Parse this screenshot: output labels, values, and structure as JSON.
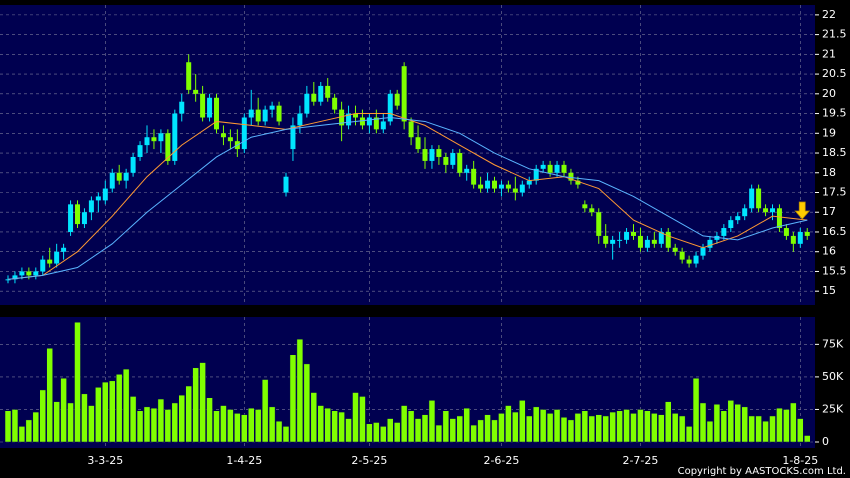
{
  "chart_data": [
    {
      "type": "candlestick",
      "up_color": "#00e5ff",
      "down_color": "#80ff00",
      "ylim": [
        14.65,
        22.25
      ],
      "yticks": [
        15,
        15.5,
        16,
        16.5,
        17,
        17.5,
        18,
        18.5,
        19,
        19.5,
        20,
        20.5,
        21,
        21.5,
        22
      ],
      "grid": true,
      "candles": [
        [
          15.3,
          15.4,
          15.2,
          15.3
        ],
        [
          15.3,
          15.5,
          15.2,
          15.4
        ],
        [
          15.4,
          15.6,
          15.3,
          15.5
        ],
        [
          15.5,
          15.6,
          15.3,
          15.4
        ],
        [
          15.4,
          15.6,
          15.3,
          15.5
        ],
        [
          15.5,
          15.9,
          15.4,
          15.8
        ],
        [
          15.8,
          16.1,
          15.6,
          15.7
        ],
        [
          15.7,
          16.2,
          15.6,
          16.0
        ],
        [
          16.0,
          16.2,
          15.8,
          16.1
        ],
        [
          16.5,
          17.3,
          16.4,
          17.2
        ],
        [
          17.2,
          17.3,
          16.6,
          16.7
        ],
        [
          16.7,
          17.1,
          16.6,
          17.0
        ],
        [
          17.0,
          17.4,
          16.8,
          17.3
        ],
        [
          17.3,
          17.5,
          17.0,
          17.4
        ],
        [
          17.3,
          17.8,
          17.2,
          17.6
        ],
        [
          17.6,
          18.1,
          17.5,
          18.0
        ],
        [
          18.0,
          18.2,
          17.7,
          17.8
        ],
        [
          17.8,
          18.1,
          17.6,
          18.0
        ],
        [
          18.0,
          18.5,
          17.9,
          18.4
        ],
        [
          18.4,
          18.8,
          18.3,
          18.7
        ],
        [
          18.7,
          19.2,
          18.5,
          18.9
        ],
        [
          18.9,
          19.1,
          18.6,
          18.8
        ],
        [
          18.8,
          19.1,
          18.5,
          19.0
        ],
        [
          19.0,
          19.1,
          18.2,
          18.3
        ],
        [
          18.3,
          19.6,
          18.2,
          19.5
        ],
        [
          19.5,
          20.0,
          19.3,
          19.8
        ],
        [
          20.8,
          21.0,
          20.0,
          20.1
        ],
        [
          20.1,
          20.5,
          19.8,
          20.0
        ],
        [
          20.0,
          20.2,
          19.3,
          19.4
        ],
        [
          19.4,
          20.0,
          19.3,
          19.9
        ],
        [
          19.9,
          20.0,
          19.0,
          19.1
        ],
        [
          19.0,
          19.2,
          18.7,
          18.9
        ],
        [
          18.9,
          19.1,
          18.6,
          18.8
        ],
        [
          18.8,
          19.1,
          18.4,
          18.6
        ],
        [
          18.6,
          19.5,
          18.5,
          19.4
        ],
        [
          19.4,
          20.1,
          19.2,
          19.6
        ],
        [
          19.6,
          19.9,
          19.2,
          19.3
        ],
        [
          19.3,
          19.7,
          19.2,
          19.6
        ],
        [
          19.6,
          19.8,
          19.4,
          19.7
        ],
        [
          19.7,
          19.8,
          19.2,
          19.3
        ],
        [
          17.5,
          18.0,
          17.4,
          17.9
        ],
        [
          18.6,
          19.4,
          18.3,
          19.2
        ],
        [
          19.2,
          19.7,
          19.0,
          19.5
        ],
        [
          19.5,
          20.2,
          19.4,
          20.0
        ],
        [
          20.0,
          20.3,
          19.7,
          19.8
        ],
        [
          19.8,
          20.3,
          19.7,
          20.2
        ],
        [
          20.2,
          20.4,
          19.8,
          19.9
        ],
        [
          19.9,
          20.0,
          19.5,
          19.6
        ],
        [
          19.6,
          19.8,
          18.8,
          19.2
        ],
        [
          19.2,
          19.7,
          19.1,
          19.5
        ],
        [
          19.5,
          19.7,
          19.2,
          19.4
        ],
        [
          19.4,
          19.6,
          19.1,
          19.2
        ],
        [
          19.2,
          19.5,
          19.0,
          19.4
        ],
        [
          19.4,
          19.6,
          19.0,
          19.1
        ],
        [
          19.1,
          19.5,
          19.0,
          19.3
        ],
        [
          19.3,
          20.1,
          19.2,
          20.0
        ],
        [
          20.0,
          20.1,
          19.6,
          19.7
        ],
        [
          20.7,
          20.8,
          19.1,
          19.3
        ],
        [
          19.3,
          19.4,
          18.7,
          18.9
        ],
        [
          18.9,
          19.2,
          18.5,
          18.6
        ],
        [
          18.6,
          18.9,
          18.1,
          18.3
        ],
        [
          18.3,
          18.7,
          18.1,
          18.6
        ],
        [
          18.6,
          18.7,
          18.2,
          18.4
        ],
        [
          18.4,
          18.5,
          18.0,
          18.2
        ],
        [
          18.2,
          18.6,
          18.1,
          18.5
        ],
        [
          18.5,
          18.6,
          17.9,
          18.0
        ],
        [
          18.0,
          18.2,
          17.8,
          18.1
        ],
        [
          18.1,
          18.3,
          17.6,
          17.7
        ],
        [
          17.7,
          17.9,
          17.5,
          17.6
        ],
        [
          17.6,
          18.0,
          17.5,
          17.8
        ],
        [
          17.8,
          17.9,
          17.5,
          17.6
        ],
        [
          17.6,
          17.8,
          17.4,
          17.7
        ],
        [
          17.7,
          17.8,
          17.5,
          17.6
        ],
        [
          17.6,
          17.9,
          17.3,
          17.5
        ],
        [
          17.5,
          17.8,
          17.4,
          17.7
        ],
        [
          17.7,
          17.9,
          17.6,
          17.8
        ],
        [
          17.8,
          18.2,
          17.7,
          18.1
        ],
        [
          18.1,
          18.3,
          18.0,
          18.2
        ],
        [
          18.2,
          18.3,
          17.9,
          18.0
        ],
        [
          18.0,
          18.3,
          17.9,
          18.2
        ],
        [
          18.2,
          18.3,
          17.9,
          18.0
        ],
        [
          18.0,
          18.1,
          17.7,
          17.8
        ],
        [
          17.8,
          17.9,
          17.6,
          17.7
        ],
        [
          17.2,
          17.3,
          17.0,
          17.1
        ],
        [
          17.1,
          17.2,
          16.9,
          17.0
        ],
        [
          17.0,
          17.1,
          16.2,
          16.4
        ],
        [
          16.4,
          16.7,
          16.1,
          16.2
        ],
        [
          16.2,
          16.4,
          15.8,
          16.3
        ],
        [
          16.3,
          16.5,
          16.1,
          16.3
        ],
        [
          16.3,
          16.6,
          16.2,
          16.5
        ],
        [
          16.5,
          16.7,
          16.3,
          16.4
        ],
        [
          16.4,
          16.6,
          16.0,
          16.1
        ],
        [
          16.1,
          16.4,
          16.0,
          16.3
        ],
        [
          16.3,
          16.5,
          16.1,
          16.2
        ],
        [
          16.2,
          16.6,
          16.1,
          16.5
        ],
        [
          16.5,
          16.6,
          16.0,
          16.1
        ],
        [
          16.1,
          16.2,
          15.9,
          16.0
        ],
        [
          16.0,
          16.1,
          15.7,
          15.8
        ],
        [
          15.8,
          15.9,
          15.6,
          15.7
        ],
        [
          15.7,
          16.0,
          15.6,
          15.9
        ],
        [
          15.9,
          16.2,
          15.8,
          16.1
        ],
        [
          16.1,
          16.4,
          16.0,
          16.3
        ],
        [
          16.3,
          16.5,
          16.2,
          16.4
        ],
        [
          16.4,
          16.7,
          16.3,
          16.6
        ],
        [
          16.6,
          16.9,
          16.5,
          16.8
        ],
        [
          16.8,
          17.0,
          16.7,
          16.9
        ],
        [
          16.9,
          17.2,
          16.8,
          17.1
        ],
        [
          17.1,
          17.7,
          17.0,
          17.6
        ],
        [
          17.6,
          17.7,
          17.0,
          17.1
        ],
        [
          17.1,
          17.2,
          16.9,
          17.0
        ],
        [
          17.0,
          17.2,
          16.8,
          17.1
        ],
        [
          17.1,
          17.2,
          16.5,
          16.6
        ],
        [
          16.6,
          16.7,
          16.3,
          16.4
        ],
        [
          16.4,
          16.5,
          16.0,
          16.2
        ],
        [
          16.2,
          16.6,
          16.1,
          16.5
        ],
        [
          16.5,
          16.6,
          16.3,
          16.4
        ]
      ],
      "lines": [
        {
          "color": "#ff9933",
          "x": [
            0,
            5,
            10,
            15,
            20,
            25,
            30,
            35,
            40,
            45,
            50,
            55,
            60,
            65,
            70,
            75,
            80,
            85,
            90,
            95,
            100,
            105,
            110,
            115
          ],
          "values": [
            15.3,
            15.4,
            16.0,
            16.9,
            17.9,
            18.7,
            19.3,
            19.2,
            19.1,
            19.3,
            19.5,
            19.5,
            19.2,
            18.7,
            18.2,
            17.8,
            17.9,
            17.6,
            16.8,
            16.4,
            16.1,
            16.4,
            16.9,
            16.8
          ]
        },
        {
          "color": "#5ab4ff",
          "x": [
            0,
            5,
            10,
            15,
            20,
            25,
            30,
            35,
            40,
            45,
            50,
            55,
            60,
            65,
            70,
            75,
            80,
            85,
            90,
            95,
            100,
            105,
            110,
            115
          ],
          "values": [
            15.3,
            15.4,
            15.6,
            16.2,
            17.0,
            17.7,
            18.4,
            18.9,
            19.1,
            19.2,
            19.3,
            19.4,
            19.3,
            19.0,
            18.5,
            18.1,
            17.9,
            17.8,
            17.4,
            16.9,
            16.4,
            16.3,
            16.6,
            16.8
          ]
        }
      ]
    },
    {
      "type": "bar",
      "color": "#80ff00",
      "ylim": [
        -4600,
        96000
      ],
      "yticks": [
        0,
        {
          "value": 25000,
          "label": "25K"
        },
        {
          "value": 50000,
          "label": "50K"
        },
        {
          "value": 75000,
          "label": "75K"
        }
      ],
      "grid": true,
      "xticks": [
        {
          "value": 14,
          "label": "3-3-25"
        },
        {
          "value": 34,
          "label": "1-4-25"
        },
        {
          "value": 52,
          "label": "2-5-25"
        },
        {
          "value": 71,
          "label": "2-6-25"
        },
        {
          "value": 91,
          "label": "2-7-25"
        },
        {
          "value": 114,
          "label": "1-8-25"
        }
      ],
      "values": [
        24000,
        25000,
        12000,
        17000,
        23000,
        40000,
        72000,
        31000,
        49000,
        30000,
        92000,
        37000,
        28000,
        42000,
        46000,
        47000,
        52000,
        56000,
        35000,
        24000,
        27000,
        26000,
        33000,
        25000,
        30000,
        36000,
        43000,
        57000,
        61000,
        34000,
        24000,
        28000,
        25000,
        22000,
        21000,
        26000,
        25000,
        48000,
        27000,
        16000,
        12000,
        67000,
        79000,
        60000,
        38000,
        28000,
        26000,
        24000,
        23000,
        18000,
        38000,
        35000,
        14000,
        15000,
        12000,
        18000,
        15000,
        28000,
        24000,
        18000,
        21000,
        32000,
        13000,
        24000,
        18000,
        20000,
        26000,
        13000,
        17000,
        21000,
        17000,
        22000,
        28000,
        23000,
        32000,
        20000,
        27000,
        25000,
        22000,
        25000,
        19000,
        17000,
        22000,
        24000,
        20000,
        21000,
        20000,
        23000,
        24000,
        25000,
        22000,
        25000,
        24000,
        22000,
        21000,
        31000,
        22000,
        20000,
        12000,
        49000,
        30000,
        16000,
        29000,
        24000,
        32000,
        29000,
        27000,
        20000,
        20000,
        16000,
        20000,
        26000,
        25000,
        30000,
        18000,
        5000
      ],
      "note": "Copyright by AASTOCKS.com Ltd."
    }
  ]
}
